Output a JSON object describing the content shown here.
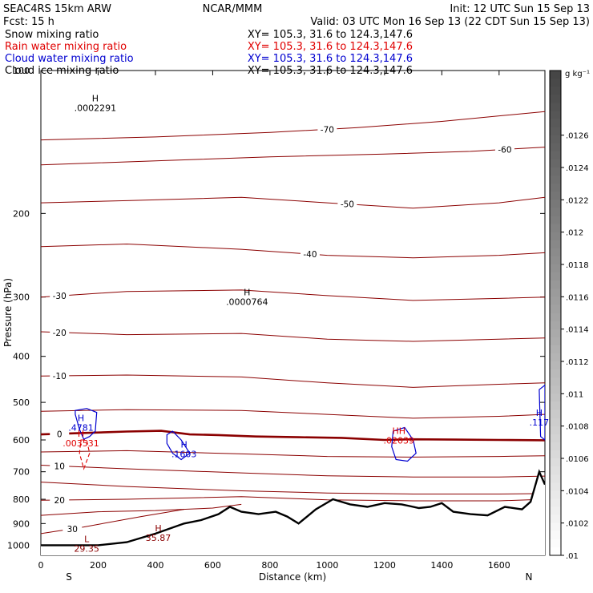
{
  "header": {
    "model": "SEAC4RS 15km ARW",
    "org": "NCAR/MMM",
    "init": "Init: 12 UTC Sun 15 Sep 13",
    "fcst": "Fcst:    15 h",
    "valid": "Valid: 03 UTC Mon 16 Sep 13 (22 CDT Sun 15 Sep 13)",
    "fields": [
      {
        "name": "Snow mixing ratio",
        "xy": "XY= 105.3, 31.6 to 124.3,147.6",
        "color": "#000000"
      },
      {
        "name": "Rain water mixing ratio",
        "xy": "XY= 105.3, 31.6 to 124.3,147.6",
        "color": "#e00000"
      },
      {
        "name": "Cloud water mixing ratio",
        "xy": "XY= 105.3, 31.6 to 124.3,147.6",
        "color": "#0000d0"
      },
      {
        "name": "Cloud ice mixing ratio",
        "xy": "XY= 105.3, 31.6 to 124.3,147.6",
        "color": "#000000"
      }
    ]
  },
  "colors": {
    "temp": "#8b0000",
    "terrain": "#000000",
    "rain": "#e00000",
    "cloud": "#0000d0"
  },
  "chart_data": {
    "type": "line",
    "xlabel": "Distance (km)",
    "ylabel": "Pressure (hPa)",
    "xlim": [
      0,
      1760
    ],
    "ylim": [
      1050,
      100
    ],
    "y_scale": "log",
    "xticks": [
      0,
      200,
      400,
      600,
      800,
      1000,
      1200,
      1400,
      1600
    ],
    "yticks": [
      100,
      200,
      300,
      400,
      500,
      600,
      700,
      800,
      900,
      1000
    ],
    "end_labels": {
      "left": "S",
      "right": "N"
    },
    "temperature_contours": [
      {
        "t": -70,
        "label": "-70",
        "label_x": 1000,
        "points": [
          [
            0,
            140
          ],
          [
            400,
            138
          ],
          [
            800,
            135
          ],
          [
            1100,
            132
          ],
          [
            1400,
            128
          ],
          [
            1760,
            122
          ]
        ]
      },
      {
        "t": -60,
        "label": "-60",
        "label_x": 1620,
        "points": [
          [
            0,
            158
          ],
          [
            400,
            155
          ],
          [
            800,
            152
          ],
          [
            1200,
            150
          ],
          [
            1500,
            148
          ],
          [
            1760,
            145
          ]
        ]
      },
      {
        "t": -50,
        "label": "-50",
        "label_x": 1070,
        "points": [
          [
            0,
            190
          ],
          [
            300,
            188
          ],
          [
            700,
            185
          ],
          [
            1000,
            190
          ],
          [
            1300,
            195
          ],
          [
            1600,
            190
          ],
          [
            1760,
            185
          ]
        ]
      },
      {
        "t": -40,
        "label": "-40",
        "label_x": 940,
        "points": [
          [
            0,
            235
          ],
          [
            300,
            232
          ],
          [
            700,
            238
          ],
          [
            1000,
            245
          ],
          [
            1300,
            248
          ],
          [
            1600,
            245
          ],
          [
            1760,
            242
          ]
        ]
      },
      {
        "t": -30,
        "label": "-30",
        "label_x": 65,
        "points": [
          [
            0,
            300
          ],
          [
            300,
            292
          ],
          [
            700,
            290
          ],
          [
            1000,
            298
          ],
          [
            1300,
            305
          ],
          [
            1600,
            302
          ],
          [
            1760,
            300
          ]
        ]
      },
      {
        "t": -20,
        "label": "-20",
        "label_x": 65,
        "points": [
          [
            0,
            355
          ],
          [
            300,
            360
          ],
          [
            700,
            358
          ],
          [
            1000,
            368
          ],
          [
            1300,
            372
          ],
          [
            1600,
            368
          ],
          [
            1760,
            366
          ]
        ]
      },
      {
        "t": -10,
        "label": "-10",
        "label_x": 65,
        "points": [
          [
            0,
            440
          ],
          [
            300,
            438
          ],
          [
            700,
            442
          ],
          [
            1000,
            455
          ],
          [
            1300,
            465
          ],
          [
            1600,
            458
          ],
          [
            1760,
            455
          ]
        ]
      },
      {
        "t": -5,
        "label": "",
        "label_x": 0,
        "points": [
          [
            0,
            522
          ],
          [
            300,
            518
          ],
          [
            700,
            520
          ],
          [
            1000,
            530
          ],
          [
            1300,
            540
          ],
          [
            1600,
            535
          ],
          [
            1760,
            530
          ]
        ]
      },
      {
        "t": 0,
        "label": "0",
        "label_x": 65,
        "points": [
          [
            0,
            584
          ],
          [
            150,
            580
          ],
          [
            300,
            576
          ],
          [
            420,
            574
          ],
          [
            520,
            584
          ],
          [
            620,
            586
          ],
          [
            750,
            590
          ],
          [
            900,
            592
          ],
          [
            1050,
            594
          ],
          [
            1200,
            600
          ],
          [
            1300,
            598
          ],
          [
            1450,
            599
          ],
          [
            1600,
            600
          ],
          [
            1760,
            601
          ]
        ]
      },
      {
        "t": 5,
        "label": "",
        "label_x": 0,
        "points": [
          [
            0,
            636
          ],
          [
            300,
            632
          ],
          [
            700,
            642
          ],
          [
            1000,
            650
          ],
          [
            1300,
            652
          ],
          [
            1600,
            650
          ],
          [
            1760,
            648
          ]
        ]
      },
      {
        "t": 10,
        "label": "10",
        "label_x": 65,
        "points": [
          [
            0,
            678
          ],
          [
            300,
            690
          ],
          [
            700,
            704
          ],
          [
            1000,
            714
          ],
          [
            1300,
            718
          ],
          [
            1600,
            718
          ],
          [
            1760,
            715
          ]
        ]
      },
      {
        "t": 15,
        "label": "",
        "label_x": 0,
        "points": [
          [
            0,
            736
          ],
          [
            300,
            752
          ],
          [
            700,
            768
          ],
          [
            1000,
            776
          ],
          [
            1300,
            780
          ],
          [
            1600,
            780
          ],
          [
            1760,
            778
          ]
        ]
      },
      {
        "t": 20,
        "label": "20",
        "label_x": 65,
        "points": [
          [
            0,
            804
          ],
          [
            300,
            800
          ],
          [
            700,
            790
          ],
          [
            1000,
            802
          ],
          [
            1300,
            806
          ],
          [
            1600,
            806
          ],
          [
            1760,
            800
          ]
        ]
      },
      {
        "t": 25,
        "label": "",
        "label_x": 0,
        "points": [
          [
            0,
            865
          ],
          [
            200,
            850
          ],
          [
            400,
            845
          ],
          [
            600,
            835
          ],
          [
            700,
            820
          ]
        ]
      },
      {
        "t": 30,
        "label": "30",
        "label_x": 110,
        "points": [
          [
            0,
            945
          ],
          [
            150,
            915
          ],
          [
            350,
            870
          ],
          [
            500,
            840
          ]
        ]
      }
    ],
    "terrain_surface": {
      "label": "Terrain",
      "points": [
        [
          0,
          1000
        ],
        [
          200,
          1000
        ],
        [
          300,
          985
        ],
        [
          400,
          945
        ],
        [
          500,
          900
        ],
        [
          560,
          885
        ],
        [
          620,
          860
        ],
        [
          660,
          830
        ],
        [
          700,
          850
        ],
        [
          760,
          860
        ],
        [
          820,
          850
        ],
        [
          860,
          870
        ],
        [
          900,
          900
        ],
        [
          960,
          840
        ],
        [
          1020,
          800
        ],
        [
          1080,
          820
        ],
        [
          1140,
          830
        ],
        [
          1200,
          815
        ],
        [
          1260,
          820
        ],
        [
          1320,
          835
        ],
        [
          1360,
          830
        ],
        [
          1400,
          815
        ],
        [
          1440,
          850
        ],
        [
          1500,
          860
        ],
        [
          1560,
          865
        ],
        [
          1620,
          830
        ],
        [
          1680,
          840
        ],
        [
          1710,
          810
        ],
        [
          1740,
          700
        ],
        [
          1760,
          745
        ]
      ]
    },
    "extrema_labels": [
      {
        "marker": "H",
        "value": ".0002291",
        "x": 190,
        "p": 118,
        "color": "#000000"
      },
      {
        "marker": "H",
        "value": ".0000764",
        "x": 720,
        "p": 302,
        "color": "#000000"
      },
      {
        "marker": "H",
        "value": ".4781",
        "x": 140,
        "p": 556,
        "color": "#0000d0"
      },
      {
        "marker": "H",
        "value": ".003531",
        "x": 140,
        "p": 600,
        "color": "#e00000"
      },
      {
        "marker": "H",
        "value": ".1603",
        "x": 500,
        "p": 632,
        "color": "#0000d0"
      },
      {
        "marker": "HH",
        "value": ".02039",
        "x": 1250,
        "p": 592,
        "color": "#e00000"
      },
      {
        "marker": "H",
        "value": ".117",
        "x": 1740,
        "p": 542,
        "color": "#0000d0"
      },
      {
        "marker": "H",
        "value": "35.87",
        "x": 410,
        "p": 950,
        "color": "#8b0000"
      },
      {
        "marker": "L",
        "value": "29.35",
        "x": 160,
        "p": 1000,
        "color": "#8b0000"
      }
    ],
    "cloud_water_contours": [
      [
        [
          120,
          520
        ],
        [
          160,
          515
        ],
        [
          195,
          525
        ],
        [
          190,
          575
        ],
        [
          170,
          590
        ],
        [
          150,
          598
        ],
        [
          135,
          570
        ],
        [
          120,
          530
        ]
      ],
      [
        [
          440,
          585
        ],
        [
          460,
          575
        ],
        [
          490,
          600
        ],
        [
          520,
          640
        ],
        [
          490,
          660
        ],
        [
          460,
          640
        ],
        [
          440,
          610
        ]
      ],
      [
        [
          1230,
          575
        ],
        [
          1270,
          565
        ],
        [
          1300,
          600
        ],
        [
          1310,
          640
        ],
        [
          1280,
          665
        ],
        [
          1240,
          660
        ],
        [
          1225,
          620
        ]
      ],
      [
        [
          1740,
          470
        ],
        [
          1760,
          460
        ],
        [
          1760,
          600
        ],
        [
          1745,
          590
        ]
      ]
    ],
    "rain_water_contours": [
      [
        [
          140,
          600
        ],
        [
          160,
          600
        ],
        [
          170,
          640
        ],
        [
          150,
          690
        ],
        [
          135,
          640
        ]
      ]
    ],
    "colorbar": {
      "unit": "g kg⁻¹",
      "ticks": [
        ".0126",
        ".0124",
        ".0122",
        ".012",
        ".0118",
        ".0116",
        ".0114",
        ".0112",
        ".011",
        ".0108",
        ".0106",
        ".0104",
        ".0102",
        ".01"
      ],
      "min": 0.01,
      "max": 0.013
    }
  }
}
